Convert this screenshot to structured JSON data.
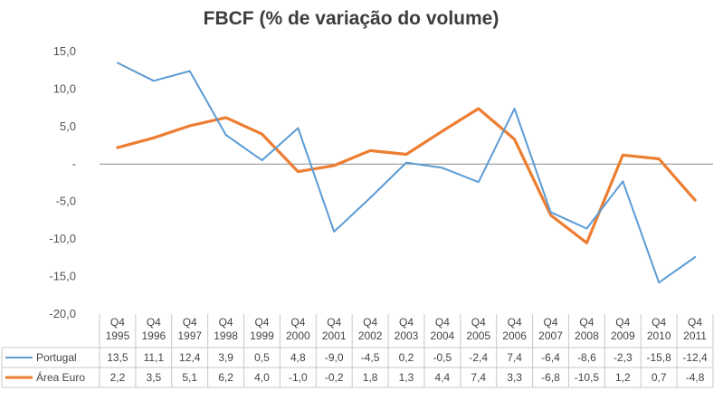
{
  "chart_data": {
    "type": "line",
    "title": "FBCF (% de variação do volume)",
    "categories": [
      "Q4 1995",
      "Q4 1996",
      "Q4 1997",
      "Q4 1998",
      "Q4 1999",
      "Q4 2000",
      "Q4 2001",
      "Q4 2002",
      "Q4 2003",
      "Q4 2004",
      "Q4 2005",
      "Q4 2006",
      "Q4 2007",
      "Q4 2008",
      "Q4 2009",
      "Q4 2010",
      "Q4 2011"
    ],
    "category_lines": [
      [
        "Q4",
        "1995"
      ],
      [
        "Q4",
        "1996"
      ],
      [
        "Q4",
        "1997"
      ],
      [
        "Q4",
        "1998"
      ],
      [
        "Q4",
        "1999"
      ],
      [
        "Q4",
        "2000"
      ],
      [
        "Q4",
        "2001"
      ],
      [
        "Q4",
        "2002"
      ],
      [
        "Q4",
        "2003"
      ],
      [
        "Q4",
        "2004"
      ],
      [
        "Q4",
        "2005"
      ],
      [
        "Q4",
        "2006"
      ],
      [
        "Q4",
        "2007"
      ],
      [
        "Q4",
        "2008"
      ],
      [
        "Q4",
        "2009"
      ],
      [
        "Q4",
        "2010"
      ],
      [
        "Q4",
        "2011"
      ]
    ],
    "series": [
      {
        "name": "Portugal",
        "color": "#5b9bd5",
        "values": [
          13.5,
          11.1,
          12.4,
          3.9,
          0.5,
          4.8,
          -9.0,
          -4.5,
          0.2,
          -0.5,
          -2.4,
          7.4,
          -6.4,
          -8.6,
          -2.3,
          -15.8,
          -12.4
        ],
        "labels": [
          "13,5",
          "11,1",
          "12,4",
          "3,9",
          "0,5",
          "4,8",
          "-9,0",
          "-4,5",
          "0,2",
          "-0,5",
          "-2,4",
          "7,4",
          "-6,4",
          "-8,6",
          "-2,3",
          "-15,8",
          "-12,4"
        ]
      },
      {
        "name": "Área Euro",
        "color": "#ed7d31",
        "values": [
          2.2,
          3.5,
          5.1,
          6.2,
          4.0,
          -1.0,
          -0.2,
          1.8,
          1.3,
          4.4,
          7.4,
          3.3,
          -6.8,
          -10.5,
          1.2,
          0.7,
          -4.8
        ],
        "labels": [
          "2,2",
          "3,5",
          "5,1",
          "6,2",
          "4,0",
          "-1,0",
          "-0,2",
          "1,8",
          "1,3",
          "4,4",
          "7,4",
          "3,3",
          "-6,8",
          "-10,5",
          "1,2",
          "0,7",
          "-4,8"
        ]
      }
    ],
    "ylim": [
      -20,
      15
    ],
    "yticks": [
      15,
      10,
      5,
      0,
      -5,
      -10,
      -15,
      -20
    ],
    "ytick_labels": [
      "15,0",
      "10,0",
      "5,0",
      "-",
      "-5,0",
      "-10,0",
      "-15,0",
      "-20,0"
    ],
    "xlabel": "",
    "ylabel": "",
    "gridlines": false,
    "legend": "bottom data table"
  }
}
